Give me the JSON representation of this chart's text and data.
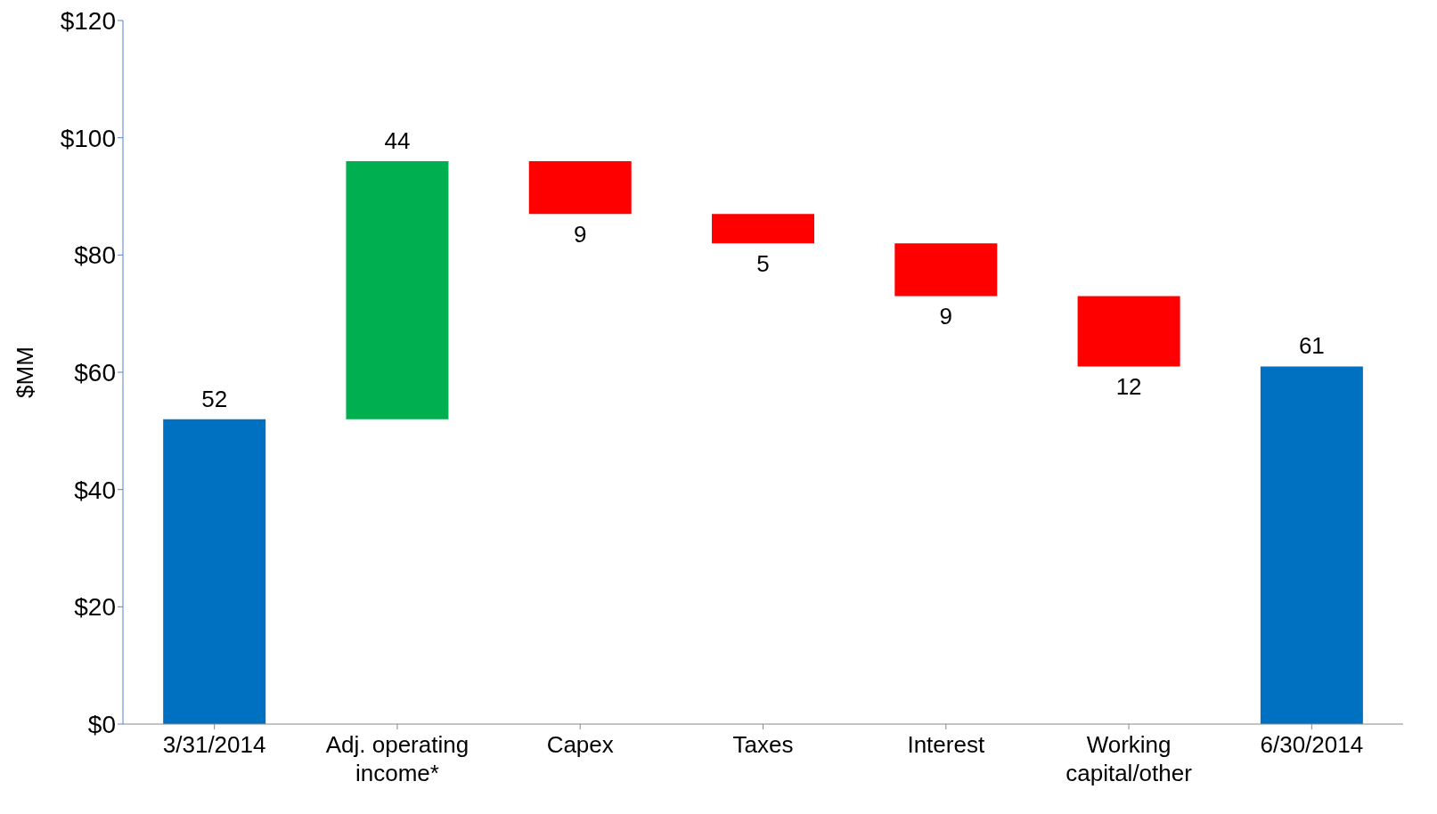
{
  "chart_data": {
    "type": "bar",
    "ylabel": "$MM",
    "categories": [
      "3/31/2014",
      "Adj. operating income*",
      "Capex",
      "Taxes",
      "Interest",
      "Working capital/other",
      "6/30/2014"
    ],
    "values": [
      52,
      44,
      -9,
      -5,
      -9,
      -12,
      61
    ],
    "base": [
      0,
      52,
      96,
      87,
      82,
      73,
      0
    ],
    "colors": [
      "#0070c0",
      "#00b050",
      "#ff0000",
      "#ff0000",
      "#ff0000",
      "#ff0000",
      "#0070c0"
    ],
    "value_labels": [
      "52",
      "44",
      "9",
      "5",
      "9",
      "12",
      "61"
    ],
    "ylim": [
      0,
      120
    ],
    "yticks": [
      {
        "value": 0,
        "label": "$0"
      },
      {
        "value": 20,
        "label": "$20"
      },
      {
        "value": 40,
        "label": "$40"
      },
      {
        "value": 60,
        "label": "$60"
      },
      {
        "value": 80,
        "label": "$80"
      },
      {
        "value": 100,
        "label": "$100"
      },
      {
        "value": 120,
        "label": "$120"
      }
    ],
    "grid": false,
    "legend": false
  }
}
